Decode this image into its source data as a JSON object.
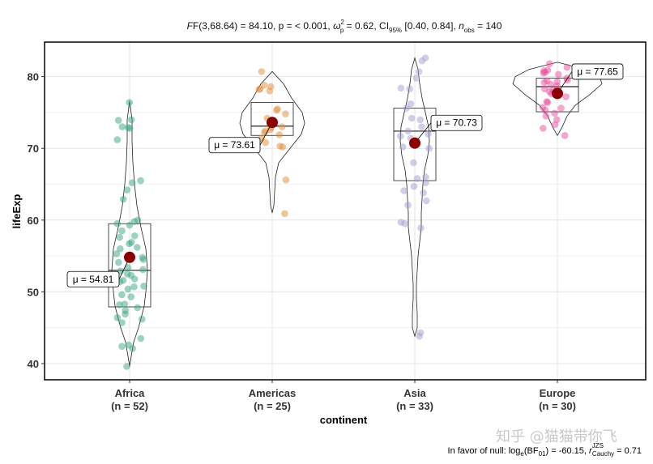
{
  "subtitle_text": "F(3,68.64) = 84.10, p = < 0.001, ω²p = 0.62, CI95% [0.40, 0.84], nobs = 140",
  "caption_text": "In favor of null: loge(BF01) = -60.15, r̂JZS Cauchy = 0.71",
  "watermark": "知乎 @猫猫带你飞",
  "chart_data": {
    "type": "scatter",
    "subtype": "violin-box-jitter",
    "title": "",
    "subtitle": {
      "stat": "F(3,68.64) = 84.10, p = < 0.001, ",
      "effect": "ω",
      "effect_sup": "2",
      "effect_sub": "p",
      "effect_value": " = 0.62, CI",
      "ci_sub": "95%",
      "ci_value": " [0.40, 0.84], ",
      "n_label": "n",
      "n_sub": "obs",
      "n_value": " = 140"
    },
    "xlabel": "continent",
    "ylabel": "lifeExp",
    "ylim": [
      38,
      85
    ],
    "yticks": [
      40,
      50,
      60,
      70,
      80
    ],
    "grid": true,
    "categories": [
      "Africa",
      "Americas",
      "Asia",
      "Europe"
    ],
    "category_counts": [
      "(n = 52)",
      "(n = 25)",
      "(n = 33)",
      "(n = 30)"
    ],
    "colors": [
      "#3aa57f",
      "#e08d3a",
      "#a3a0cf",
      "#e7509a"
    ],
    "mean_color": "#8b0000",
    "means": [
      54.81,
      73.61,
      70.73,
      77.65
    ],
    "mean_labels": [
      "μ = 54.81",
      "μ = 73.61",
      "μ = 70.73",
      "μ = 77.65"
    ],
    "boxes": [
      {
        "q1": 47.9,
        "median": 53.0,
        "q3": 59.5
      },
      {
        "q1": 71.8,
        "median": 73.1,
        "q3": 76.4
      },
      {
        "q1": 65.5,
        "median": 72.4,
        "q3": 75.6
      },
      {
        "q1": 75.1,
        "median": 78.6,
        "q3": 79.8
      }
    ],
    "series": [
      {
        "name": "Africa",
        "values": [
          76.4,
          74.0,
          73.9,
          73.0,
          72.9,
          72.8,
          71.2,
          65.5,
          65.2,
          64.2,
          62.9,
          60.0,
          59.8,
          59.5,
          59.3,
          58.5,
          57.8,
          57.6,
          56.9,
          56.7,
          56.0,
          55.3,
          54.8,
          54.5,
          54.1,
          53.4,
          53.1,
          52.9,
          52.5,
          52.3,
          51.8,
          51.6,
          51.4,
          50.8,
          50.4,
          49.6,
          49.3,
          48.3,
          48.2,
          47.8,
          47.4,
          46.9,
          46.4,
          46.2,
          45.7,
          43.5,
          42.6,
          42.4,
          42.1,
          39.6,
          56.2,
          50.7
        ]
      },
      {
        "name": "Americas",
        "values": [
          80.7,
          78.8,
          78.6,
          78.3,
          78.2,
          78.0,
          75.5,
          75.3,
          74.8,
          74.2,
          73.9,
          73.7,
          73.4,
          73.0,
          72.9,
          72.6,
          72.4,
          72.2,
          71.9,
          71.4,
          70.8,
          70.3,
          70.2,
          65.6,
          60.9
        ]
      },
      {
        "name": "Asia",
        "values": [
          82.6,
          82.2,
          80.7,
          79.8,
          78.4,
          78.3,
          76.2,
          75.6,
          74.2,
          74.0,
          73.0,
          72.4,
          72.0,
          71.7,
          71.4,
          70.7,
          70.6,
          70.2,
          70.0,
          68.0,
          66.0,
          65.8,
          64.7,
          64.1,
          63.8,
          62.7,
          62.1,
          59.7,
          59.5,
          58.9,
          44.3,
          43.8,
          65.2
        ]
      },
      {
        "name": "Europe",
        "values": [
          81.8,
          81.3,
          80.9,
          80.8,
          80.6,
          80.5,
          80.3,
          79.8,
          79.5,
          79.4,
          79.3,
          79.2,
          78.9,
          78.7,
          78.3,
          78.1,
          77.9,
          77.6,
          77.2,
          76.5,
          76.4,
          75.7,
          75.6,
          75.3,
          74.9,
          74.5,
          74.0,
          73.3,
          72.8,
          71.8
        ]
      }
    ]
  }
}
